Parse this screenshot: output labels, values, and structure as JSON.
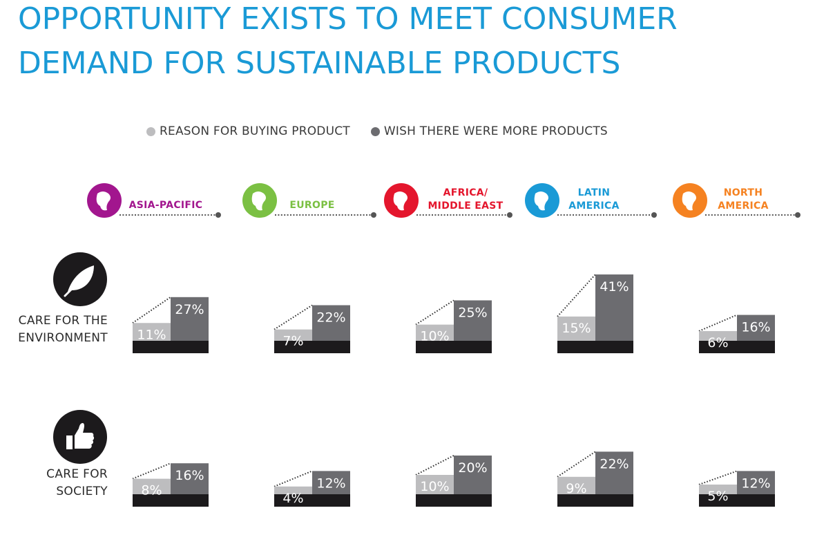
{
  "title": {
    "line1": "OPPORTUNITY EXISTS TO MEET CONSUMER",
    "line2": "DEMAND FOR SUSTAINABLE PRODUCTS"
  },
  "legend": {
    "reason": "REASON FOR BUYING PRODUCT",
    "wish": "WISH THERE WERE MORE PRODUCTS"
  },
  "colors": {
    "title": "#1a9ad6",
    "reason_bar": "#bdbdbf",
    "wish_bar": "#6c6c70",
    "base_bar": "#1c1a1c",
    "asia_pacific": "#a2168e",
    "europe": "#7bc043",
    "africa_middle_east": "#e4162d",
    "latin_america": "#1a9ad6",
    "north_america": "#f58221"
  },
  "rows": [
    {
      "line1": "CARE FOR THE",
      "line2": "ENVIRONMENT",
      "icon": "leaf-icon"
    },
    {
      "line1": "CARE FOR",
      "line2": "SOCIETY",
      "icon": "thumbs-up-icon"
    }
  ],
  "regions": [
    {
      "line1": "ASIA-PACIFIC",
      "line2": "",
      "icon": "globe-asia-pacific-icon"
    },
    {
      "line1": "EUROPE",
      "line2": "",
      "icon": "globe-europe-icon"
    },
    {
      "line1": "AFRICA/",
      "line2": "MIDDLE EAST",
      "icon": "globe-africa-icon"
    },
    {
      "line1": "LATIN",
      "line2": "AMERICA",
      "icon": "globe-latin-america-icon"
    },
    {
      "line1": "NORTH",
      "line2": "AMERICA",
      "icon": "globe-north-america-icon"
    }
  ],
  "chart_data": {
    "type": "bar",
    "title": "OPPORTUNITY EXISTS TO MEET CONSUMER DEMAND FOR SUSTAINABLE PRODUCTS",
    "categories": [
      "ASIA-PACIFIC",
      "EUROPE",
      "AFRICA/MIDDLE EAST",
      "LATIN AMERICA",
      "NORTH AMERICA"
    ],
    "groups": [
      {
        "name": "CARE FOR THE ENVIRONMENT",
        "series": [
          {
            "name": "REASON FOR BUYING PRODUCT",
            "values": [
              11,
              7,
              10,
              15,
              6
            ],
            "labels": [
              "11%",
              "7%",
              "10%",
              "15%",
              "6%"
            ]
          },
          {
            "name": "WISH THERE WERE MORE PRODUCTS",
            "values": [
              27,
              22,
              25,
              41,
              16
            ],
            "labels": [
              "27%",
              "22%",
              "25%",
              "41%",
              "16%"
            ]
          }
        ]
      },
      {
        "name": "CARE FOR SOCIETY",
        "series": [
          {
            "name": "REASON FOR BUYING PRODUCT",
            "values": [
              8,
              4,
              10,
              9,
              5
            ],
            "labels": [
              "8%",
              "4%",
              "10%",
              "9%",
              "5%"
            ]
          },
          {
            "name": "WISH THERE WERE MORE PRODUCTS",
            "values": [
              16,
              12,
              20,
              22,
              12
            ],
            "labels": [
              "16%",
              "12%",
              "20%",
              "22%",
              "12%"
            ]
          }
        ]
      }
    ],
    "legend": "top"
  }
}
